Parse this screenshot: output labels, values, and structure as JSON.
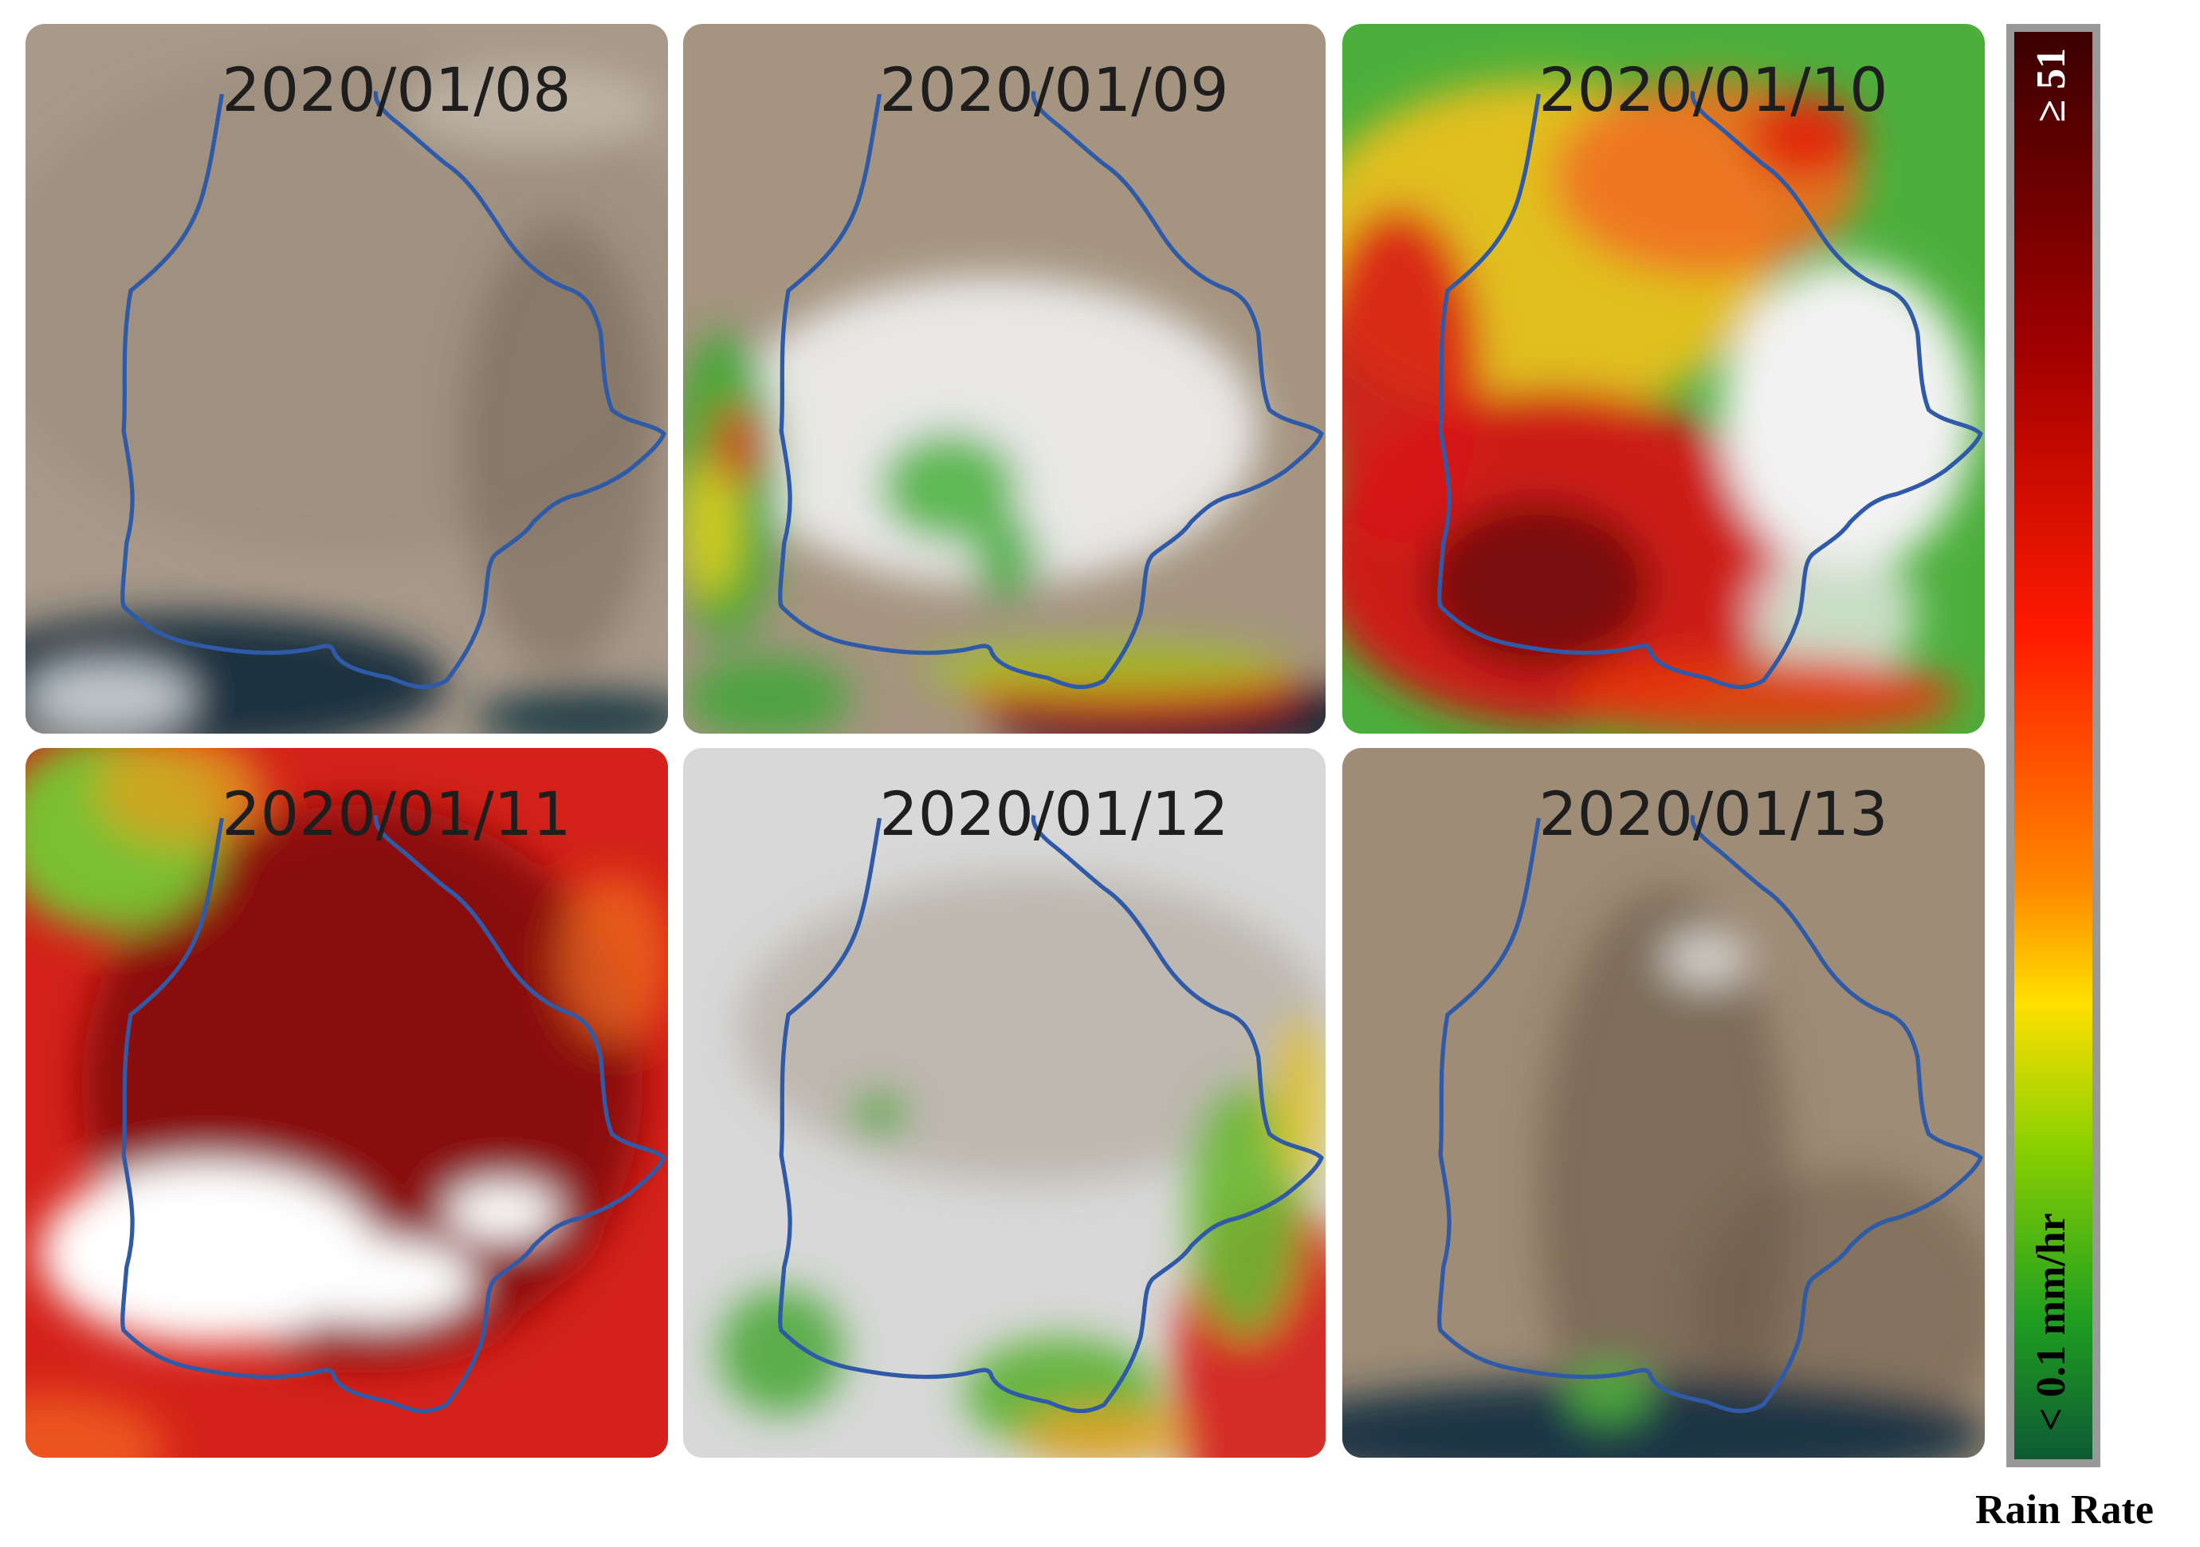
{
  "panels": [
    {
      "date": "2020/01/08"
    },
    {
      "date": "2020/01/09"
    },
    {
      "date": "2020/01/10"
    },
    {
      "date": "2020/01/11"
    },
    {
      "date": "2020/01/12"
    },
    {
      "date": "2020/01/13"
    }
  ],
  "colorbar": {
    "max_label": "≥ 51",
    "min_label": "< 0.1 mm/hr",
    "title": "Rain Rate"
  }
}
